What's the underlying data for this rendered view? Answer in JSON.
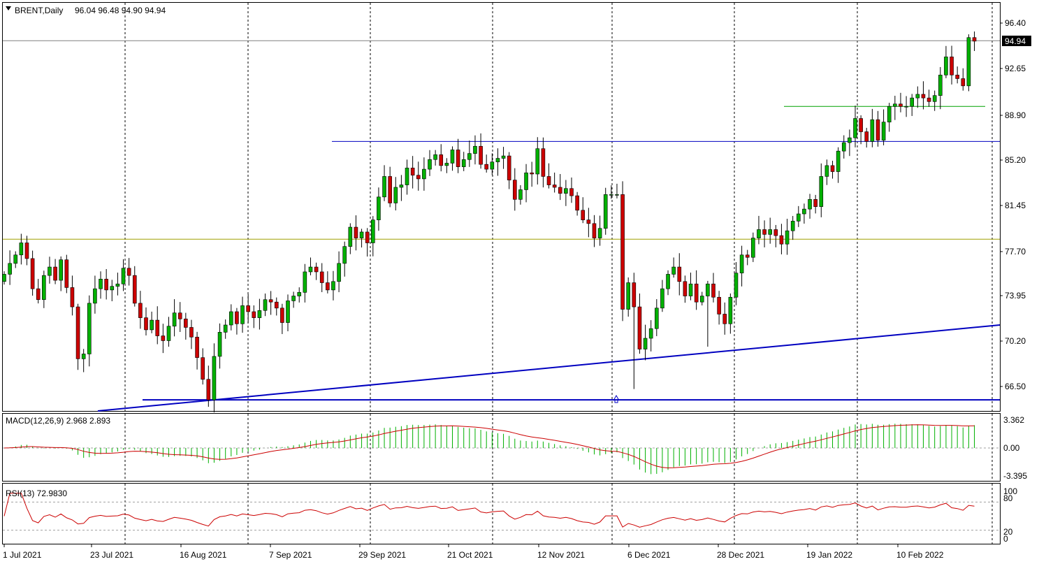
{
  "header": {
    "symbol": "BRENT",
    "timeframe": "Daily",
    "ohlc": "96.04 96.48 94.90 94.94",
    "current_price": "94.94"
  },
  "colors": {
    "bull": "#00b000",
    "bear": "#cc0000",
    "trend": "#0000c0",
    "macd_hist": "#00b000",
    "macd_signal": "#cc0000",
    "rsi": "#cc0000",
    "level_olive": "#a0a000",
    "level_green": "#00a000"
  },
  "chart_data": [
    {
      "type": "candlestick",
      "symbol": "BRENT",
      "timeframe": "Daily",
      "ylim": [
        64.0,
        97.3
      ],
      "y_ticks": [
        "96.40",
        "92.65",
        "88.90",
        "85.20",
        "81.45",
        "77.70",
        "73.95",
        "70.20",
        "66.50"
      ],
      "x_ticks": [
        "1 Jul 2021",
        "23 Jul 2021",
        "16 Aug 2021",
        "7 Sep 2021",
        "29 Sep 2021",
        "21 Oct 2021",
        "12 Nov 2021",
        "6 Dec 2021",
        "28 Dec 2021",
        "19 Jan 2022",
        "10 Feb 2022"
      ],
      "closes": [
        75.6,
        76.5,
        77.2,
        78.2,
        76.9,
        74.4,
        73.5,
        75.5,
        76.2,
        75.1,
        76.8,
        74.5,
        72.9,
        68.6,
        69.0,
        73.2,
        74.4,
        75.2,
        74.3,
        74.6,
        74.8,
        76.1,
        75.5,
        73.2,
        72.0,
        71.0,
        71.8,
        70.5,
        70.1,
        71.3,
        72.4,
        71.9,
        71.2,
        70.4,
        68.7,
        66.9,
        65.2,
        68.8,
        70.8,
        71.4,
        72.5,
        71.5,
        73.0,
        72.5,
        72.0,
        72.6,
        73.5,
        73.3,
        72.8,
        71.6,
        73.4,
        73.8,
        74.1,
        75.8,
        76.2,
        75.8,
        74.9,
        74.3,
        75.0,
        76.5,
        77.9,
        79.5,
        78.6,
        79.1,
        78.2,
        80.1,
        82.0,
        83.7,
        81.5,
        82.8,
        83.0,
        84.4,
        83.8,
        83.5,
        84.3,
        85.1,
        85.5,
        84.6,
        84.8,
        85.9,
        84.5,
        85.1,
        85.6,
        86.2,
        84.7,
        84.3,
        84.9,
        85.2,
        85.4,
        83.4,
        81.8,
        82.6,
        84.0,
        83.9,
        86.0,
        83.7,
        83.0,
        82.8,
        82.3,
        82.7,
        82.1,
        80.9,
        80.1,
        79.8,
        78.6,
        79.4,
        82.2,
        82.2,
        82.2,
        72.7,
        74.9,
        72.9,
        69.4,
        70.3,
        71.1,
        72.8,
        74.4,
        75.6,
        76.2,
        75.0,
        73.8,
        74.8,
        73.3,
        73.8,
        74.8,
        73.7,
        72.3,
        71.5,
        73.7,
        75.7,
        77.2,
        77.0,
        78.6,
        79.3,
        78.9,
        79.3,
        78.8,
        78.1,
        79.2,
        80.0,
        80.6,
        81.0,
        81.8,
        81.2,
        83.7,
        84.6,
        84.1,
        85.8,
        86.5,
        86.9,
        88.5,
        87.4,
        86.6,
        88.4,
        86.7,
        88.2,
        89.5,
        89.7,
        89.5,
        89.5,
        90.2,
        90.5,
        90.2,
        89.9,
        90.4,
        92.1,
        93.6,
        92.1,
        91.8,
        91.2,
        95.2,
        94.9
      ],
      "trendlines": [
        {
          "from_date": "Aug 2021",
          "to_date": "end",
          "from_price": 65.0,
          "to_price": 71.4
        },
        {
          "from_date": "Sep 2021",
          "to_date": "end",
          "price": 86.6
        },
        {
          "price": 65.2
        }
      ],
      "horizontal_levels": [
        78.5,
        89.5,
        94.94
      ]
    },
    {
      "type": "macd",
      "title": "MACD(12,26,9) 2.968 2.893",
      "y_ticks": [
        "3.362",
        "0.00",
        "-3.395"
      ],
      "ylim": [
        -4.6,
        4.0
      ]
    },
    {
      "type": "rsi",
      "title": "RSI(13) 72.9830",
      "y_ticks": [
        "100",
        "80",
        "20",
        "0"
      ],
      "ylim": [
        0,
        100
      ]
    }
  ]
}
